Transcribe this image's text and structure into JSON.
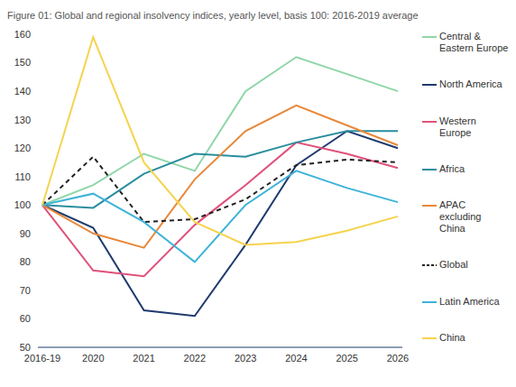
{
  "chart_data": {
    "type": "line",
    "title": "Figure 01: Global and regional insolvency indices, yearly level, basis 100: 2016-2019 average",
    "categories": [
      "2016-19",
      "2020",
      "2021",
      "2022",
      "2023",
      "2024",
      "2025",
      "2026"
    ],
    "series": [
      {
        "name": "Central & Eastern Europe",
        "color": "#8fd6a8",
        "line_style": "solid",
        "values": [
          100,
          107,
          118,
          112,
          140,
          152,
          146,
          140
        ]
      },
      {
        "name": "North America",
        "color": "#1f3a6e",
        "line_style": "solid",
        "values": [
          100,
          92,
          63,
          61,
          86,
          114,
          126,
          120
        ]
      },
      {
        "name": "Western Europe",
        "color": "#e0517a",
        "line_style": "solid",
        "values": [
          100,
          77,
          75,
          93,
          107,
          122,
          118,
          113
        ]
      },
      {
        "name": "Africa",
        "color": "#2a8e9e",
        "line_style": "solid",
        "values": [
          100,
          99,
          111,
          118,
          117,
          122,
          126,
          126
        ]
      },
      {
        "name": "APAC excluding China",
        "color": "#e8883a",
        "line_style": "solid",
        "values": [
          100,
          90,
          85,
          109,
          126,
          135,
          128,
          121
        ]
      },
      {
        "name": "Global",
        "color": "#222222",
        "line_style": "dashed",
        "values": [
          100,
          117,
          94,
          95,
          102,
          114,
          116,
          115
        ]
      },
      {
        "name": "Latin America",
        "color": "#3fb3d9",
        "line_style": "solid",
        "values": [
          100,
          104,
          94,
          80,
          100,
          112,
          106,
          101
        ]
      },
      {
        "name": "China",
        "color": "#f5d34d",
        "line_style": "solid",
        "values": [
          100,
          159,
          115,
          94,
          86,
          87,
          91,
          96
        ]
      }
    ],
    "ylim": [
      50,
      160
    ],
    "yticks": [
      50,
      60,
      70,
      80,
      90,
      100,
      110,
      120,
      130,
      140,
      150,
      160
    ],
    "grid": false,
    "legend": "right"
  }
}
